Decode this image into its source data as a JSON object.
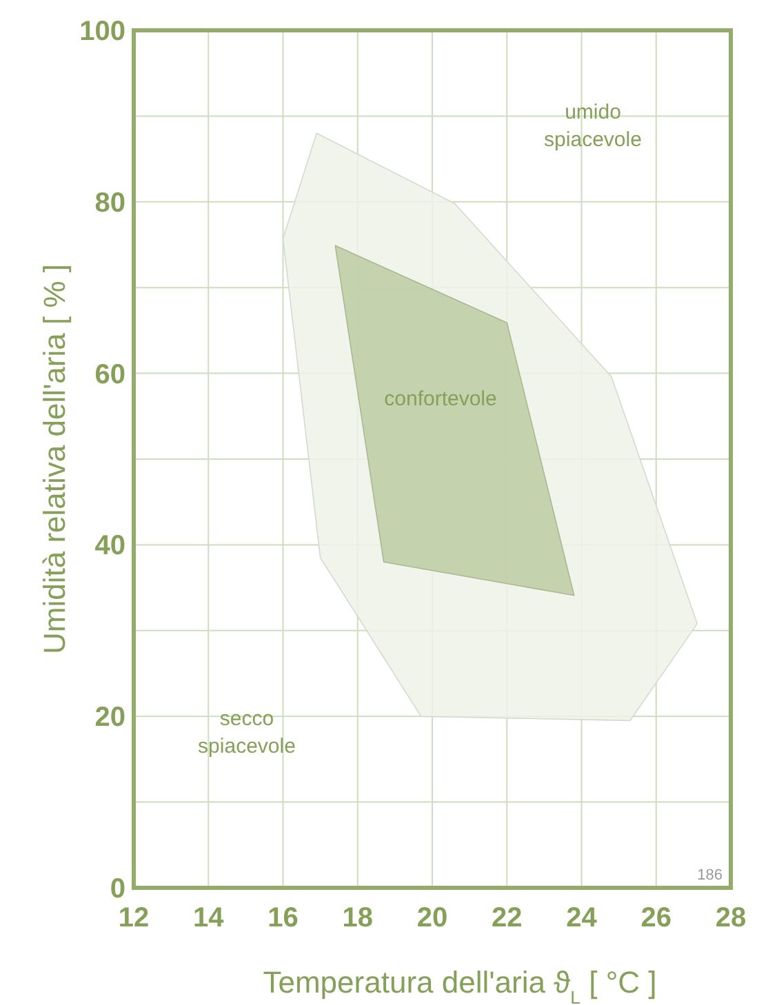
{
  "chart_data": {
    "type": "area",
    "xlabel": "Temperatura dell'aria ϑ$_{L}$  [ °C ]",
    "ylabel": "Umidità relativa dell'aria  [ % ]",
    "xlim": [
      12,
      28
    ],
    "xticks": [
      12,
      14,
      16,
      18,
      20,
      22,
      24,
      26,
      28
    ],
    "ylim": [
      0,
      100
    ],
    "yticks": [
      0,
      {
        "value": 10,
        "label": null
      },
      20,
      {
        "value": 30,
        "label": null
      },
      40,
      {
        "value": 50,
        "label": null
      },
      60,
      {
        "value": 70,
        "label": null
      },
      80,
      {
        "value": 90,
        "label": null
      },
      100
    ],
    "grid": true,
    "series": [
      {
        "color": "#eef2e6",
        "x": [
          16.9,
          20.6,
          24.8,
          27.1,
          25.3,
          19.7,
          17.0,
          16.0
        ],
        "values": [
          88,
          79.8,
          59.6,
          30.8,
          19.5,
          20,
          38.5,
          75.7
        ]
      },
      {
        "color": "#bccda3",
        "x": [
          17.4,
          22.0,
          23.8,
          18.7
        ],
        "values": [
          74.9,
          65.9,
          34.1,
          38
        ]
      }
    ],
    "annotations": [
      "umido spiacevole",
      "confortevole",
      "secco spiacevole",
      "186"
    ]
  }
}
